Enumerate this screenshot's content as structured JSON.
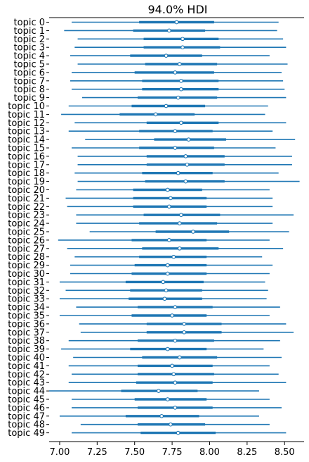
{
  "chart_data": {
    "type": "forest",
    "title": "94.0% HDI",
    "xlabel": "",
    "ylabel": "",
    "xlim": [
      6.93,
      8.63
    ],
    "xticks": [
      "7.00",
      "7.25",
      "7.50",
      "7.75",
      "8.00",
      "8.25",
      "8.50"
    ],
    "color": "#1f77b4",
    "categories": [
      "topic 0",
      "topic 1",
      "topic 2",
      "topic 3",
      "topic 4",
      "topic 5",
      "topic 6",
      "topic 7",
      "topic 8",
      "topic 9",
      "topic 10",
      "topic 11",
      "topic 12",
      "topic 13",
      "topic 14",
      "topic 15",
      "topic 16",
      "topic 17",
      "topic 18",
      "topic 19",
      "topic 20",
      "topic 21",
      "topic 22",
      "topic 23",
      "topic 24",
      "topic 25",
      "topic 26",
      "topic 27",
      "topic 28",
      "topic 29",
      "topic 30",
      "topic 31",
      "topic 32",
      "topic 33",
      "topic 34",
      "topic 35",
      "topic 36",
      "topic 37",
      "topic 38",
      "topic 39",
      "topic 40",
      "topic 41",
      "topic 42",
      "topic 43",
      "topic 44",
      "topic 45",
      "topic 46",
      "topic 47",
      "topic 48",
      "topic 49"
    ],
    "hdi_low": [
      7.08,
      7.03,
      7.12,
      7.1,
      7.07,
      7.12,
      7.08,
      7.07,
      7.08,
      7.15,
      7.06,
      7.01,
      7.1,
      7.06,
      7.17,
      7.08,
      7.12,
      7.12,
      7.1,
      7.12,
      7.11,
      7.04,
      7.05,
      7.11,
      7.11,
      7.2,
      6.99,
      7.05,
      7.1,
      7.07,
      7.07,
      7.0,
      7.04,
      7.0,
      7.11,
      7.0,
      7.13,
      7.14,
      7.06,
      7.01,
      7.09,
      7.06,
      7.08,
      7.06,
      6.93,
      7.08,
      7.08,
      7.0,
      7.14,
      7.08
    ],
    "iqr_low": [
      7.53,
      7.49,
      7.56,
      7.56,
      7.47,
      7.57,
      7.5,
      7.55,
      7.55,
      7.52,
      7.48,
      7.4,
      7.58,
      7.53,
      7.63,
      7.53,
      7.58,
      7.58,
      7.55,
      7.57,
      7.49,
      7.49,
      7.49,
      7.56,
      7.53,
      7.64,
      7.48,
      7.55,
      7.53,
      7.5,
      7.48,
      7.44,
      7.47,
      7.46,
      7.52,
      7.48,
      7.58,
      7.58,
      7.52,
      7.47,
      7.55,
      7.52,
      7.52,
      7.51,
      7.41,
      7.5,
      7.52,
      7.44,
      7.52,
      7.54
    ],
    "median": [
      7.78,
      7.73,
      7.82,
      7.82,
      7.71,
      7.8,
      7.77,
      7.81,
      7.81,
      7.79,
      7.71,
      7.64,
      7.81,
      7.77,
      7.86,
      7.77,
      7.84,
      7.85,
      7.79,
      7.84,
      7.72,
      7.74,
      7.73,
      7.81,
      7.8,
      7.89,
      7.73,
      7.8,
      7.76,
      7.72,
      7.72,
      7.69,
      7.71,
      7.7,
      7.77,
      7.75,
      7.83,
      7.83,
      7.77,
      7.72,
      7.8,
      7.75,
      7.76,
      7.77,
      7.66,
      7.72,
      7.77,
      7.68,
      7.74,
      7.79
    ],
    "iqr_high": [
      8.03,
      7.97,
      8.06,
      8.07,
      7.95,
      8.05,
      8.03,
      8.06,
      8.06,
      8.05,
      7.97,
      7.9,
      8.06,
      8.02,
      8.11,
      8.03,
      8.1,
      8.1,
      8.02,
      8.1,
      7.95,
      7.98,
      7.98,
      8.07,
      8.05,
      8.13,
      7.98,
      8.06,
      7.98,
      7.98,
      7.98,
      7.96,
      7.95,
      7.95,
      8.02,
      7.98,
      8.08,
      8.08,
      8.03,
      7.98,
      8.05,
      8.02,
      8.03,
      8.02,
      7.92,
      7.98,
      8.02,
      7.93,
      7.97,
      8.04
    ],
    "hdi_high": [
      8.46,
      8.45,
      8.49,
      8.51,
      8.4,
      8.52,
      8.48,
      8.49,
      8.5,
      8.51,
      8.39,
      8.37,
      8.51,
      8.42,
      8.57,
      8.44,
      8.55,
      8.55,
      8.46,
      8.6,
      8.4,
      8.42,
      8.42,
      8.56,
      8.42,
      8.53,
      8.4,
      8.49,
      8.35,
      8.42,
      8.4,
      8.37,
      8.39,
      8.38,
      8.47,
      8.4,
      8.51,
      8.56,
      8.47,
      8.36,
      8.48,
      8.4,
      8.46,
      8.51,
      8.33,
      8.4,
      8.48,
      8.33,
      8.4,
      8.51
    ]
  }
}
